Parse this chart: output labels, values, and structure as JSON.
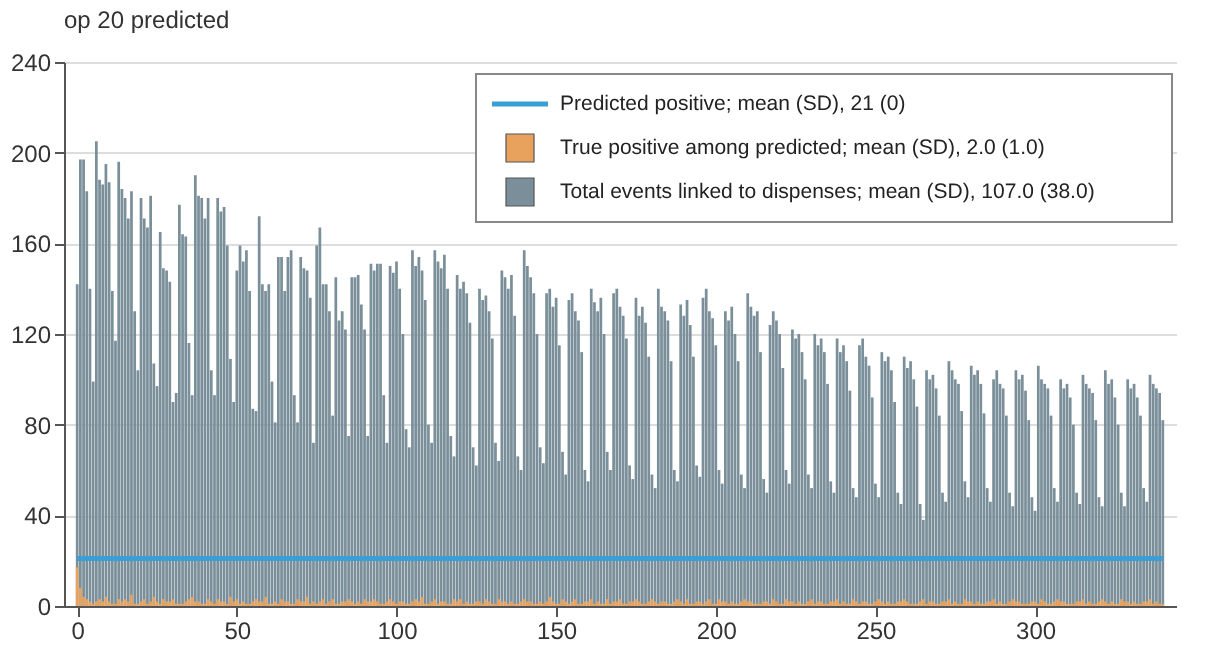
{
  "chart_data": {
    "type": "bar",
    "title": "op 20 predicted",
    "xlim": [
      -1,
      341
    ],
    "xticks": [
      0,
      50,
      100,
      150,
      200,
      250,
      300
    ],
    "ylim": [
      0,
      240
    ],
    "yticks": [
      0,
      40,
      80,
      120,
      160,
      200,
      240
    ],
    "grid": "y",
    "legend": "top right",
    "x": [
      0,
      1,
      2,
      3,
      4,
      5,
      6,
      7,
      8,
      9,
      10,
      11,
      12,
      13,
      14,
      15,
      16,
      17,
      18,
      19,
      20,
      21,
      22,
      23,
      24,
      25,
      26,
      27,
      28,
      29,
      30,
      31,
      32,
      33,
      34,
      35,
      36,
      37,
      38,
      39,
      40,
      41,
      42,
      43,
      44,
      45,
      46,
      47,
      48,
      49,
      50,
      51,
      52,
      53,
      54,
      55,
      56,
      57,
      58,
      59,
      60,
      61,
      62,
      63,
      64,
      65,
      66,
      67,
      68,
      69,
      70,
      71,
      72,
      73,
      74,
      75,
      76,
      77,
      78,
      79,
      80,
      81,
      82,
      83,
      84,
      85,
      86,
      87,
      88,
      89,
      90,
      91,
      92,
      93,
      94,
      95,
      96,
      97,
      98,
      99,
      100,
      101,
      102,
      103,
      104,
      105,
      106,
      107,
      108,
      109,
      110,
      111,
      112,
      113,
      114,
      115,
      116,
      117,
      118,
      119,
      120,
      121,
      122,
      123,
      124,
      125,
      126,
      127,
      128,
      129,
      130,
      131,
      132,
      133,
      134,
      135,
      136,
      137,
      138,
      139,
      140,
      141,
      142,
      143,
      144,
      145,
      146,
      147,
      148,
      149,
      150,
      151,
      152,
      153,
      154,
      155,
      156,
      157,
      158,
      159,
      160,
      161,
      162,
      163,
      164,
      165,
      166,
      167,
      168,
      169,
      170,
      171,
      172,
      173,
      174,
      175,
      176,
      177,
      178,
      179,
      180,
      181,
      182,
      183,
      184,
      185,
      186,
      187,
      188,
      189,
      190,
      191,
      192,
      193,
      194,
      195,
      196,
      197,
      198,
      199,
      200,
      201,
      202,
      203,
      204,
      205,
      206,
      207,
      208,
      209,
      210,
      211,
      212,
      213,
      214,
      215,
      216,
      217,
      218,
      219,
      220,
      221,
      222,
      223,
      224,
      225,
      226,
      227,
      228,
      229,
      230,
      231,
      232,
      233,
      234,
      235,
      236,
      237,
      238,
      239,
      240,
      241,
      242,
      243,
      244,
      245,
      246,
      247,
      248,
      249,
      250,
      251,
      252,
      253,
      254,
      255,
      256,
      257,
      258,
      259,
      260,
      261,
      262,
      263,
      264,
      265,
      266,
      267,
      268,
      269,
      270,
      271,
      272,
      273,
      274,
      275,
      276,
      277,
      278,
      279,
      280,
      281,
      282,
      283,
      284,
      285,
      286,
      287,
      288,
      289,
      290,
      291,
      292,
      293,
      294,
      295,
      296,
      297,
      298,
      299,
      300,
      301,
      302,
      303,
      304,
      305,
      306,
      307,
      308,
      309,
      310,
      311,
      312,
      313,
      314,
      315,
      316,
      317,
      318,
      319,
      320,
      321,
      322,
      323,
      324,
      325,
      326,
      327,
      328,
      329,
      330,
      331,
      332,
      333,
      334,
      335,
      336,
      337,
      338,
      339,
      340
    ],
    "series": [
      {
        "name": "Predicted positive; mean (SD), 21 (0)",
        "type": "line",
        "color": "#3a9fd6",
        "x": [
          0,
          340
        ],
        "values": [
          21,
          21
        ]
      },
      {
        "name": "True positive among predicted; mean (SD), 2.0 (1.0)",
        "color": "#e8a25e",
        "values": [
          17,
          8,
          4,
          3,
          2,
          1,
          2,
          3,
          2,
          4,
          2,
          1,
          1,
          3,
          2,
          3,
          2,
          5,
          1,
          1,
          2,
          3,
          1,
          2,
          4,
          2,
          1,
          3,
          2,
          2,
          3,
          1,
          1,
          1,
          2,
          3,
          4,
          2,
          2,
          1,
          1,
          3,
          2,
          1,
          3,
          2,
          2,
          1,
          4,
          2,
          3,
          1,
          2,
          1,
          1,
          2,
          3,
          2,
          2,
          4,
          1,
          1,
          2,
          1,
          3,
          2,
          2,
          1,
          1,
          3,
          2,
          2,
          4,
          1,
          2,
          1,
          2,
          3,
          1,
          2,
          3,
          1,
          1,
          2,
          2,
          3,
          2,
          1,
          2,
          1,
          3,
          2,
          2,
          3,
          2,
          1,
          1,
          2,
          3,
          2,
          1,
          2,
          2,
          1,
          1,
          2,
          3,
          2,
          4,
          1,
          1,
          2,
          3,
          1,
          2,
          2,
          1,
          1,
          3,
          2,
          3,
          1,
          2,
          1,
          1,
          2,
          2,
          1,
          3,
          2,
          1,
          1,
          3,
          2,
          2,
          1,
          2,
          1,
          1,
          2,
          3,
          2,
          2,
          1,
          1,
          2,
          1,
          2,
          4,
          2,
          1,
          1,
          3,
          2,
          1,
          2,
          3,
          1,
          1,
          2,
          2,
          3,
          1,
          2,
          1,
          1,
          3,
          1,
          2,
          2,
          3,
          1,
          1,
          2,
          2,
          3,
          2,
          1,
          1,
          2,
          3,
          2,
          1,
          2,
          2,
          1,
          1,
          2,
          3,
          2,
          1,
          3,
          1,
          1,
          2,
          2,
          1,
          2,
          3,
          1,
          1,
          3,
          2,
          2,
          1,
          2,
          1,
          1,
          2,
          3,
          2,
          2,
          1,
          1,
          1,
          2,
          2,
          1,
          3,
          2,
          1,
          1,
          3,
          2,
          2,
          1,
          2,
          1,
          1,
          2,
          3,
          1,
          2,
          2,
          1,
          1,
          2,
          2,
          3,
          1,
          2,
          1,
          1,
          3,
          2,
          1,
          2,
          2,
          1,
          1,
          2,
          3,
          2,
          1,
          2,
          1,
          1,
          2,
          2,
          3,
          2,
          1,
          1,
          1,
          2,
          3,
          1,
          2,
          2,
          1,
          1,
          2,
          2,
          3,
          1,
          2,
          1,
          1,
          3,
          2,
          2,
          1,
          2,
          1,
          1,
          2,
          2,
          3,
          1,
          2,
          1,
          1,
          2,
          3,
          2,
          2,
          1,
          1,
          1,
          2,
          2,
          1,
          3,
          2,
          1,
          1,
          2,
          3,
          2,
          2,
          1,
          1,
          1,
          2,
          2,
          3,
          1,
          2,
          1,
          1,
          2,
          3,
          2,
          1,
          2,
          1,
          1,
          3,
          2,
          2,
          1,
          2,
          1,
          1,
          2,
          2,
          3,
          1,
          2,
          1,
          1
        ]
      },
      {
        "name": "Total events linked to dispenses; mean (SD), 107.0 (38.0)",
        "color": "#7a8f99",
        "values": [
          142,
          197,
          197,
          183,
          140,
          99,
          205,
          188,
          186,
          195,
          187,
          139,
          117,
          196,
          184,
          180,
          171,
          183,
          130,
          104,
          180,
          171,
          167,
          181,
          107,
          97,
          165,
          149,
          148,
          143,
          90,
          94,
          177,
          164,
          163,
          116,
          93,
          190,
          181,
          180,
          171,
          180,
          104,
          93,
          180,
          174,
          176,
          159,
          109,
          90,
          148,
          159,
          152,
          157,
          139,
          87,
          86,
          172,
          142,
          139,
          142,
          99,
          81,
          154,
          154,
          139,
          154,
          157,
          93,
          81,
          154,
          149,
          148,
          136,
          72,
          159,
          167,
          142,
          142,
          130,
          84,
          145,
          126,
          130,
          122,
          75,
          145,
          145,
          146,
          133,
          122,
          75,
          151,
          148,
          151,
          151,
          93,
          72,
          150,
          147,
          152,
          140,
          120,
          78,
          70,
          157,
          150,
          154,
          148,
          135,
          80,
          72,
          157,
          152,
          149,
          155,
          140,
          75,
          66,
          146,
          140,
          143,
          138,
          125,
          70,
          62,
          140,
          135,
          137,
          130,
          118,
          72,
          64,
          148,
          145,
          140,
          146,
          128,
          66,
          60,
          157,
          150,
          145,
          138,
          120,
          70,
          63,
          138,
          140,
          132,
          136,
          115,
          68,
          58,
          135,
          138,
          130,
          126,
          112,
          60,
          55,
          140,
          134,
          130,
          136,
          120,
          68,
          60,
          138,
          140,
          132,
          128,
          118,
          62,
          56,
          136,
          128,
          132,
          125,
          110,
          58,
          52,
          140,
          132,
          130,
          126,
          108,
          60,
          55,
          133,
          128,
          135,
          124,
          110,
          62,
          57,
          136,
          140,
          130,
          127,
          115,
          60,
          54,
          130,
          126,
          132,
          120,
          108,
          58,
          52,
          138,
          132,
          128,
          130,
          112,
          56,
          50,
          124,
          130,
          126,
          120,
          105,
          60,
          54,
          122,
          118,
          120,
          112,
          100,
          58,
          52,
          120,
          115,
          118,
          112,
          98,
          55,
          50,
          118,
          112,
          115,
          108,
          95,
          52,
          48,
          115,
          118,
          110,
          106,
          92,
          54,
          48,
          112,
          108,
          110,
          104,
          90,
          50,
          45,
          110,
          105,
          108,
          100,
          88,
          45,
          38,
          104,
          100,
          102,
          96,
          84,
          50,
          46,
          108,
          104,
          100,
          98,
          86,
          55,
          48,
          106,
          102,
          104,
          98,
          85,
          52,
          46,
          100,
          104,
          98,
          96,
          84,
          50,
          44,
          104,
          100,
          102,
          95,
          82,
          48,
          42,
          106,
          100,
          98,
          96,
          84,
          52,
          46,
          100,
          96,
          98,
          92,
          80,
          50,
          45,
          102,
          98,
          96,
          94,
          82,
          48,
          44,
          104,
          98,
          100,
          92,
          80,
          50,
          44,
          100,
          96,
          98,
          92,
          84,
          52,
          46,
          102,
          98,
          96,
          94,
          82
        ]
      }
    ]
  }
}
